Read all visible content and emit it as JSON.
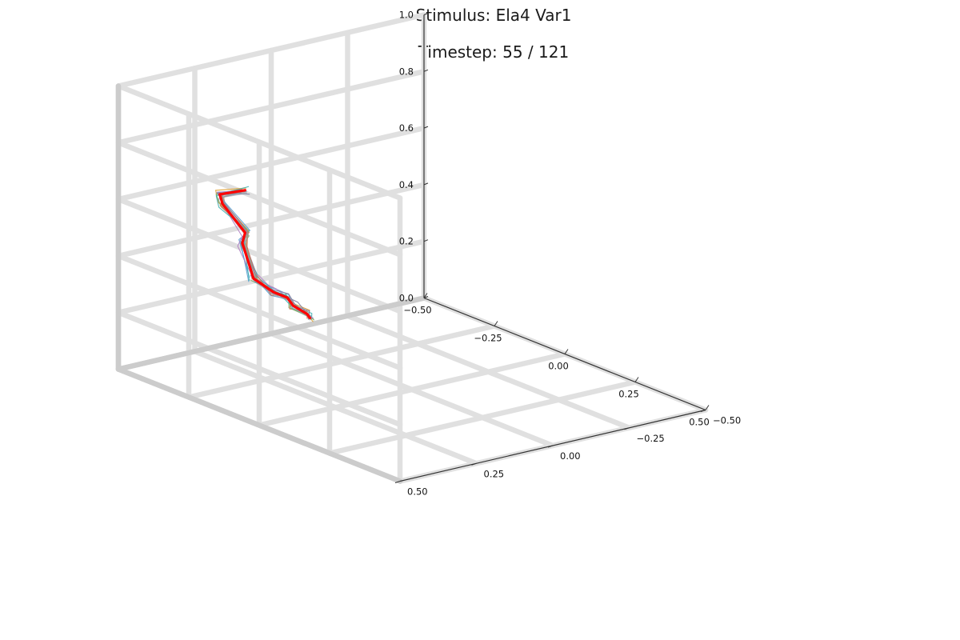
{
  "chart_data": {
    "type": "line3d",
    "title": "Stimulus: Ela4 Var1",
    "subtitle": "Timestep: 55 / 121",
    "xlim": [
      -0.5,
      0.5
    ],
    "ylim": [
      -0.5,
      0.5
    ],
    "zlim": [
      0.0,
      1.0
    ],
    "x_ticks": [
      "−0.50",
      "−0.25",
      "0.00",
      "0.25",
      "0.50"
    ],
    "y_ticks": [
      "−0.50",
      "−0.25",
      "0.00",
      "0.25",
      "0.50"
    ],
    "z_ticks": [
      "0.0",
      "0.2",
      "0.4",
      "0.6",
      "0.8",
      "1.0"
    ],
    "grid": true,
    "legend": "none",
    "colors": {
      "highlight": "#ff0000",
      "grid": "#e0e0e0",
      "back_edges": "#cccccc",
      "axis": "#333333",
      "ensemble": [
        "#5aa0d0",
        "#e0a030",
        "#7cae6a",
        "#b080c0",
        "#40b0b0",
        "#d07050",
        "#8080a0"
      ]
    },
    "series": [
      {
        "color": "#ff0000",
        "points": [
          [
            -0.02,
            0.5,
            0.51
          ],
          [
            -0.06,
            0.5,
            0.62
          ],
          [
            -0.05,
            0.5,
            0.66
          ],
          [
            -0.13,
            0.5,
            0.73
          ],
          [
            -0.14,
            0.5,
            0.76
          ],
          [
            -0.05,
            0.5,
            0.81
          ]
        ]
      },
      {
        "color": "#ff0000",
        "points": [
          [
            -0.02,
            0.5,
            0.51
          ],
          [
            0.05,
            0.5,
            0.49
          ],
          [
            0.1,
            0.5,
            0.49
          ],
          [
            0.12,
            0.5,
            0.47
          ],
          [
            0.17,
            0.5,
            0.46
          ],
          [
            0.18,
            0.5,
            0.45
          ]
        ]
      }
    ]
  }
}
